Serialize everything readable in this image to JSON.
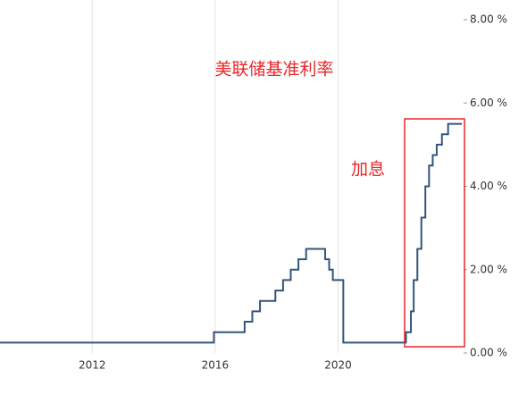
{
  "chart_data": {
    "type": "line",
    "step": true,
    "annotations": [
      "美联储基准利率",
      "加息"
    ],
    "x": [
      2009.0,
      2015.96,
      2016.96,
      2017.21,
      2017.46,
      2017.96,
      2018.21,
      2018.46,
      2018.71,
      2018.96,
      2019.58,
      2019.71,
      2019.83,
      2020.17,
      2022.21,
      2022.37,
      2022.46,
      2022.58,
      2022.71,
      2022.84,
      2022.96,
      2023.08,
      2023.21,
      2023.38,
      2023.58,
      2024.0
    ],
    "series": [
      {
        "color": "#34557a",
        "values": [
          0.25,
          0.5,
          0.75,
          1.0,
          1.25,
          1.5,
          1.75,
          2.0,
          2.25,
          2.5,
          2.25,
          2.0,
          1.75,
          0.25,
          0.5,
          1.0,
          1.75,
          2.5,
          3.25,
          4.0,
          4.5,
          4.75,
          5.0,
          5.25,
          5.5,
          5.5
        ]
      }
    ],
    "xlim": [
      2009.0,
      2024.2
    ],
    "xticks": [
      2012,
      2016,
      2020
    ],
    "ylim": [
      0,
      8
    ],
    "yticks": [
      {
        "value": 0,
        "label": "0.00 %"
      },
      {
        "value": 2,
        "label": "2.00 %"
      },
      {
        "value": 4,
        "label": "4.00 %"
      },
      {
        "value": 6,
        "label": "6.00 %"
      },
      {
        "value": 8,
        "label": "8.00 %"
      }
    ],
    "grid": "x"
  }
}
